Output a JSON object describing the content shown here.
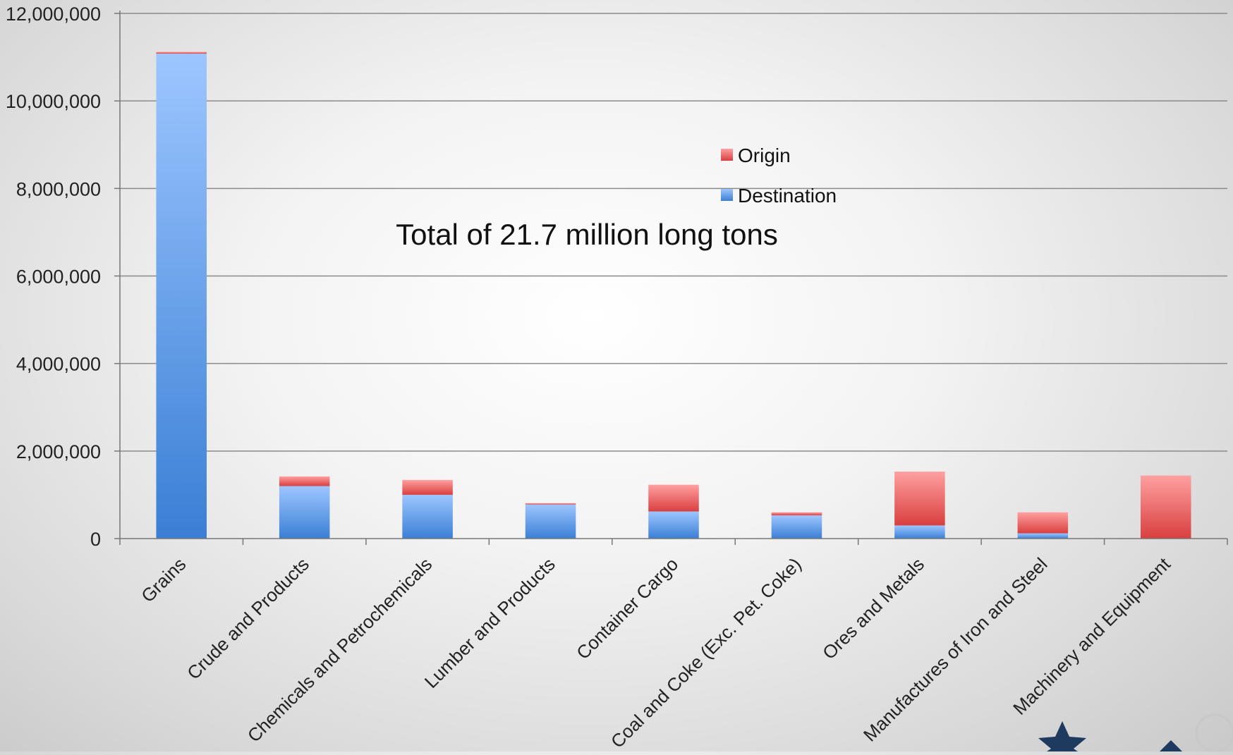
{
  "chart_data": {
    "type": "bar",
    "stacked": true,
    "title": "",
    "annotation": "Total of 21.7 million long tons",
    "xlabel": "",
    "ylabel": "",
    "ylim": [
      0,
      12000000
    ],
    "yticks": [
      0,
      2000000,
      4000000,
      6000000,
      8000000,
      10000000,
      12000000
    ],
    "ytick_labels": [
      "0",
      "2,000,000",
      "4,000,000",
      "6,000,000",
      "8,000,000",
      "10,000,000",
      "12,000,000"
    ],
    "grid": true,
    "legend_position": "upper-center",
    "categories": [
      "Grains",
      "Crude and Products",
      "Chemicals and Petrochemicals",
      "Lumber and Products",
      "Container Cargo",
      "Coal and Coke (Exc. Pet. Coke)",
      "Ores and Metals",
      "Manufactures of Iron and Steel",
      "Machinery and Equipment"
    ],
    "series": [
      {
        "name": "Destination",
        "color": "#5b9bd5",
        "values": [
          11080000,
          1200000,
          1000000,
          780000,
          620000,
          530000,
          300000,
          120000,
          0
        ]
      },
      {
        "name": "Origin",
        "color": "#e06666",
        "values": [
          40000,
          220000,
          340000,
          30000,
          610000,
          70000,
          1230000,
          480000,
          1440000
        ]
      }
    ],
    "legend_order": [
      "Origin",
      "Destination"
    ]
  }
}
